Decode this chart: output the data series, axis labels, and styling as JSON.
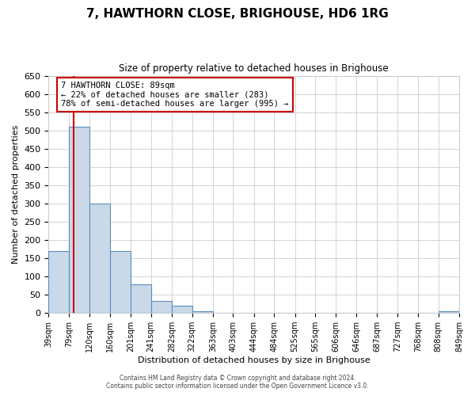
{
  "title": "7, HAWTHORN CLOSE, BRIGHOUSE, HD6 1RG",
  "subtitle": "Size of property relative to detached houses in Brighouse",
  "xlabel": "Distribution of detached houses by size in Brighouse",
  "ylabel": "Number of detached properties",
  "bin_edges": [
    39,
    79,
    120,
    160,
    201,
    241,
    282,
    322,
    363,
    403,
    444,
    484,
    525,
    565,
    606,
    646,
    687,
    727,
    768,
    808,
    849
  ],
  "bar_heights": [
    170,
    510,
    300,
    170,
    78,
    32,
    20,
    5,
    0,
    0,
    0,
    0,
    0,
    0,
    0,
    0,
    0,
    0,
    0,
    5
  ],
  "bar_color": "#c9d9e8",
  "bar_edge_color": "#5b8db8",
  "property_line_x": 89,
  "property_line_color": "#cc0000",
  "annotation_line1": "7 HAWTHORN CLOSE: 89sqm",
  "annotation_line2": "← 22% of detached houses are smaller (283)",
  "annotation_line3": "78% of semi-detached houses are larger (995) →",
  "annotation_box_color": "#cc0000",
  "ylim": [
    0,
    650
  ],
  "yticks": [
    0,
    50,
    100,
    150,
    200,
    250,
    300,
    350,
    400,
    450,
    500,
    550,
    600,
    650
  ],
  "tick_labels": [
    "39sqm",
    "79sqm",
    "120sqm",
    "160sqm",
    "201sqm",
    "241sqm",
    "282sqm",
    "322sqm",
    "363sqm",
    "403sqm",
    "444sqm",
    "484sqm",
    "525sqm",
    "565sqm",
    "606sqm",
    "646sqm",
    "687sqm",
    "727sqm",
    "768sqm",
    "808sqm",
    "849sqm"
  ],
  "footer_line1": "Contains HM Land Registry data © Crown copyright and database right 2024.",
  "footer_line2": "Contains public sector information licensed under the Open Government Licence v3.0.",
  "bg_color": "#ffffff",
  "grid_color": "#cccccc",
  "title_fontsize": 11,
  "subtitle_fontsize": 8.5,
  "ylabel_fontsize": 8,
  "xlabel_fontsize": 8,
  "ytick_fontsize": 8,
  "xtick_fontsize": 7
}
